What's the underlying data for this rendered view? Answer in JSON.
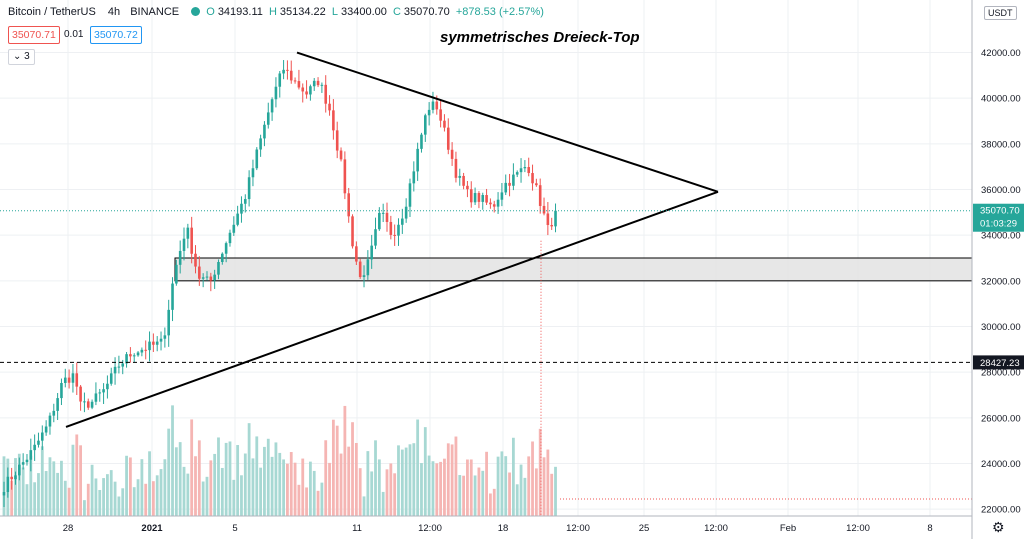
{
  "header": {
    "symbol": "Bitcoin / TetherUS",
    "interval": "4h",
    "exchange": "BINANCE",
    "open_label": "O",
    "open": "34193.11",
    "high_label": "H",
    "high": "35134.22",
    "low_label": "L",
    "low": "33400.00",
    "close_label": "C",
    "close": "35070.70",
    "change": "+878.53 (+2.57%)",
    "sell_price": "35070.71",
    "spread": "0.01",
    "buy_price": "35070.72",
    "collapsed_count": "3"
  },
  "currency_badge": "USDT",
  "colors": {
    "up": "#26a69a",
    "down": "#ef5350",
    "up_volume": "#a7d8d3",
    "down_volume": "#f5b5b3",
    "grid": "#eef0f3",
    "zone_fill": "#e3e3e3"
  },
  "chart_data": {
    "type": "candlestick",
    "title": "symmetrisches Dreieck-Top",
    "y_axis": {
      "ticks": [
        22000,
        24000,
        26000,
        28000,
        30000,
        32000,
        34000,
        36000,
        38000,
        40000,
        42000
      ],
      "range": [
        21700,
        44300
      ]
    },
    "x_axis": {
      "tick_labels": [
        "28",
        "2021",
        "5",
        "11",
        "12:00",
        "18",
        "12:00",
        "25",
        "12:00",
        "Feb",
        "12:00",
        "8"
      ]
    },
    "price_label": {
      "value": "35070.70",
      "countdown": "01:03:29"
    },
    "support_label": "28427.23",
    "support_line": 28427.23,
    "zone": [
      32000,
      33000
    ],
    "triangle": {
      "upper": [
        [
          0,
          42000
        ],
        [
          1,
          35900
        ]
      ],
      "lower": [
        [
          0,
          25600
        ],
        [
          1,
          35900
        ]
      ]
    },
    "candle_count": 145,
    "keypoints": [
      [
        0,
        23000
      ],
      [
        10,
        23800
      ],
      [
        20,
        24600
      ],
      [
        30,
        25700
      ],
      [
        40,
        27600
      ],
      [
        48,
        27900
      ],
      [
        52,
        26500
      ],
      [
        60,
        26700
      ],
      [
        68,
        27200
      ],
      [
        78,
        28300
      ],
      [
        88,
        28900
      ],
      [
        98,
        29100
      ],
      [
        108,
        29300
      ],
      [
        116,
        32400
      ],
      [
        124,
        34400
      ],
      [
        132,
        32200
      ],
      [
        140,
        31900
      ],
      [
        146,
        32900
      ],
      [
        154,
        34200
      ],
      [
        164,
        35700
      ],
      [
        172,
        37600
      ],
      [
        182,
        39900
      ],
      [
        190,
        41300
      ],
      [
        198,
        40700
      ],
      [
        206,
        40200
      ],
      [
        214,
        40800
      ],
      [
        222,
        39400
      ],
      [
        230,
        36800
      ],
      [
        236,
        34000
      ],
      [
        242,
        32100
      ],
      [
        248,
        32800
      ],
      [
        256,
        35000
      ],
      [
        264,
        34000
      ],
      [
        272,
        35100
      ],
      [
        280,
        37300
      ],
      [
        288,
        39600
      ],
      [
        294,
        39700
      ],
      [
        300,
        38400
      ],
      [
        308,
        36600
      ],
      [
        316,
        35700
      ],
      [
        324,
        35600
      ],
      [
        332,
        35200
      ],
      [
        340,
        36200
      ],
      [
        348,
        36600
      ],
      [
        356,
        37100
      ],
      [
        364,
        35600
      ],
      [
        370,
        34200
      ],
      [
        375,
        35070
      ]
    ]
  }
}
